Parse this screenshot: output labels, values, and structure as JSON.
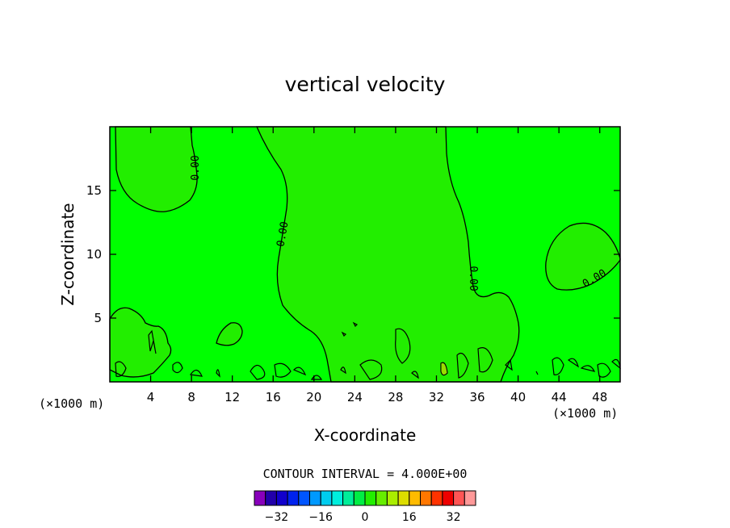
{
  "chart_data": {
    "type": "contour",
    "title": "vertical velocity",
    "xlabel": "X-coordinate",
    "ylabel": "Z-coordinate",
    "x_unit_left": "(×1000 m)",
    "x_unit_right": "(×1000 m)",
    "xlim": [
      0,
      50
    ],
    "ylim": [
      0,
      20
    ],
    "x_ticks": [
      4,
      8,
      12,
      16,
      20,
      24,
      28,
      32,
      36,
      40,
      44,
      48
    ],
    "y_ticks": [
      5,
      10,
      15
    ],
    "contour_interval_text": "CONTOUR INTERVAL = 4.000E+00",
    "contour_label": "0.00",
    "fill_color": "#00ff00",
    "zero_region_color": "#22ee00",
    "colorbar": {
      "levels": [
        -36,
        -32,
        -28,
        -24,
        -20,
        -16,
        -12,
        -8,
        -4,
        0,
        4,
        8,
        12,
        16,
        20,
        24,
        28,
        32,
        36
      ],
      "tick_values": [
        -32,
        -16,
        0,
        16,
        32
      ],
      "tick_labels": [
        "−32",
        "−16",
        "0",
        "16",
        "32"
      ],
      "colors": [
        "#8800bb",
        "#2200aa",
        "#1100cc",
        "#0022ee",
        "#0055ff",
        "#0099ff",
        "#00ccee",
        "#00eedd",
        "#00ee99",
        "#00ee44",
        "#22ee00",
        "#66ee00",
        "#aaee00",
        "#dddd00",
        "#ffbb00",
        "#ff7700",
        "#ff3300",
        "#ee0000",
        "#ff5555",
        "#ff9999"
      ]
    }
  }
}
